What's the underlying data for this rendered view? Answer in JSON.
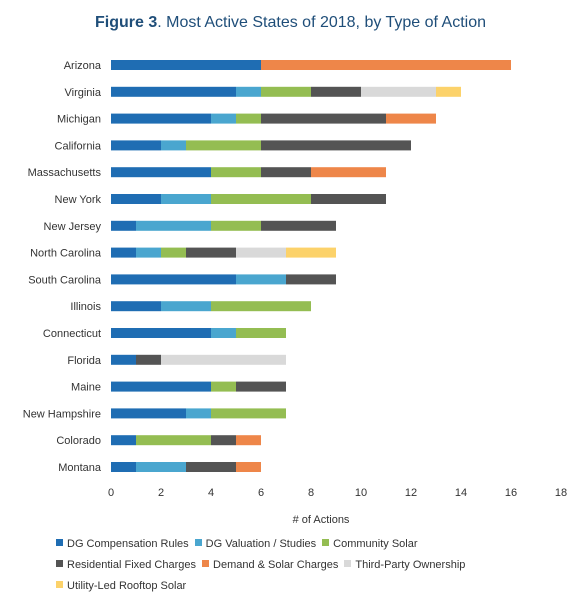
{
  "title": {
    "bold": "Figure 3",
    "rest": ". Most Active States of 2018, by Type of Action"
  },
  "chart_data": {
    "type": "bar",
    "orientation": "horizontal",
    "stacked": true,
    "title": "Figure 3. Most Active States of 2018, by Type of Action",
    "xlabel": "# of Actions",
    "ylabel": "",
    "xlim": [
      0,
      18
    ],
    "xticks": [
      0,
      2,
      4,
      6,
      8,
      10,
      12,
      14,
      16,
      18
    ],
    "grid": false,
    "legend_position": "bottom",
    "categories": [
      "Arizona",
      "Virginia",
      "Michigan",
      "California",
      "Massachusetts",
      "New York",
      "New Jersey",
      "North Carolina",
      "South Carolina",
      "Illinois",
      "Connecticut",
      "Florida",
      "Maine",
      "New Hampshire",
      "Colorado",
      "Montana"
    ],
    "series": [
      {
        "name": "DG Compensation Rules",
        "color": "#1f6db3",
        "values": [
          6,
          5,
          4,
          2,
          4,
          2,
          1,
          1,
          5,
          2,
          4,
          1,
          4,
          3,
          1,
          1
        ]
      },
      {
        "name": "DG Valuation / Studies",
        "color": "#4aa6cf",
        "values": [
          0,
          1,
          1,
          1,
          0,
          2,
          3,
          1,
          2,
          2,
          1,
          0,
          0,
          1,
          0,
          2
        ]
      },
      {
        "name": "Community Solar",
        "color": "#94bd52",
        "values": [
          0,
          2,
          1,
          3,
          2,
          4,
          2,
          1,
          0,
          4,
          2,
          0,
          1,
          3,
          3,
          0
        ]
      },
      {
        "name": "Residential Fixed Charges",
        "color": "#545454",
        "values": [
          0,
          2,
          5,
          6,
          2,
          3,
          3,
          2,
          2,
          0,
          0,
          1,
          2,
          0,
          1,
          2
        ]
      },
      {
        "name": "Demand & Solar Charges",
        "color": "#ee8649",
        "values": [
          10,
          0,
          2,
          0,
          3,
          0,
          0,
          0,
          0,
          0,
          0,
          0,
          0,
          0,
          1,
          1
        ]
      },
      {
        "name": "Third-Party Ownership",
        "color": "#d9d9d9",
        "values": [
          0,
          3,
          0,
          0,
          0,
          0,
          0,
          2,
          0,
          0,
          0,
          5,
          0,
          0,
          0,
          0
        ]
      },
      {
        "name": "Utility-Led Rooftop Solar",
        "color": "#fcd26a",
        "values": [
          0,
          1,
          0,
          0,
          0,
          0,
          0,
          2,
          0,
          0,
          0,
          0,
          0,
          0,
          0,
          0
        ]
      }
    ]
  }
}
